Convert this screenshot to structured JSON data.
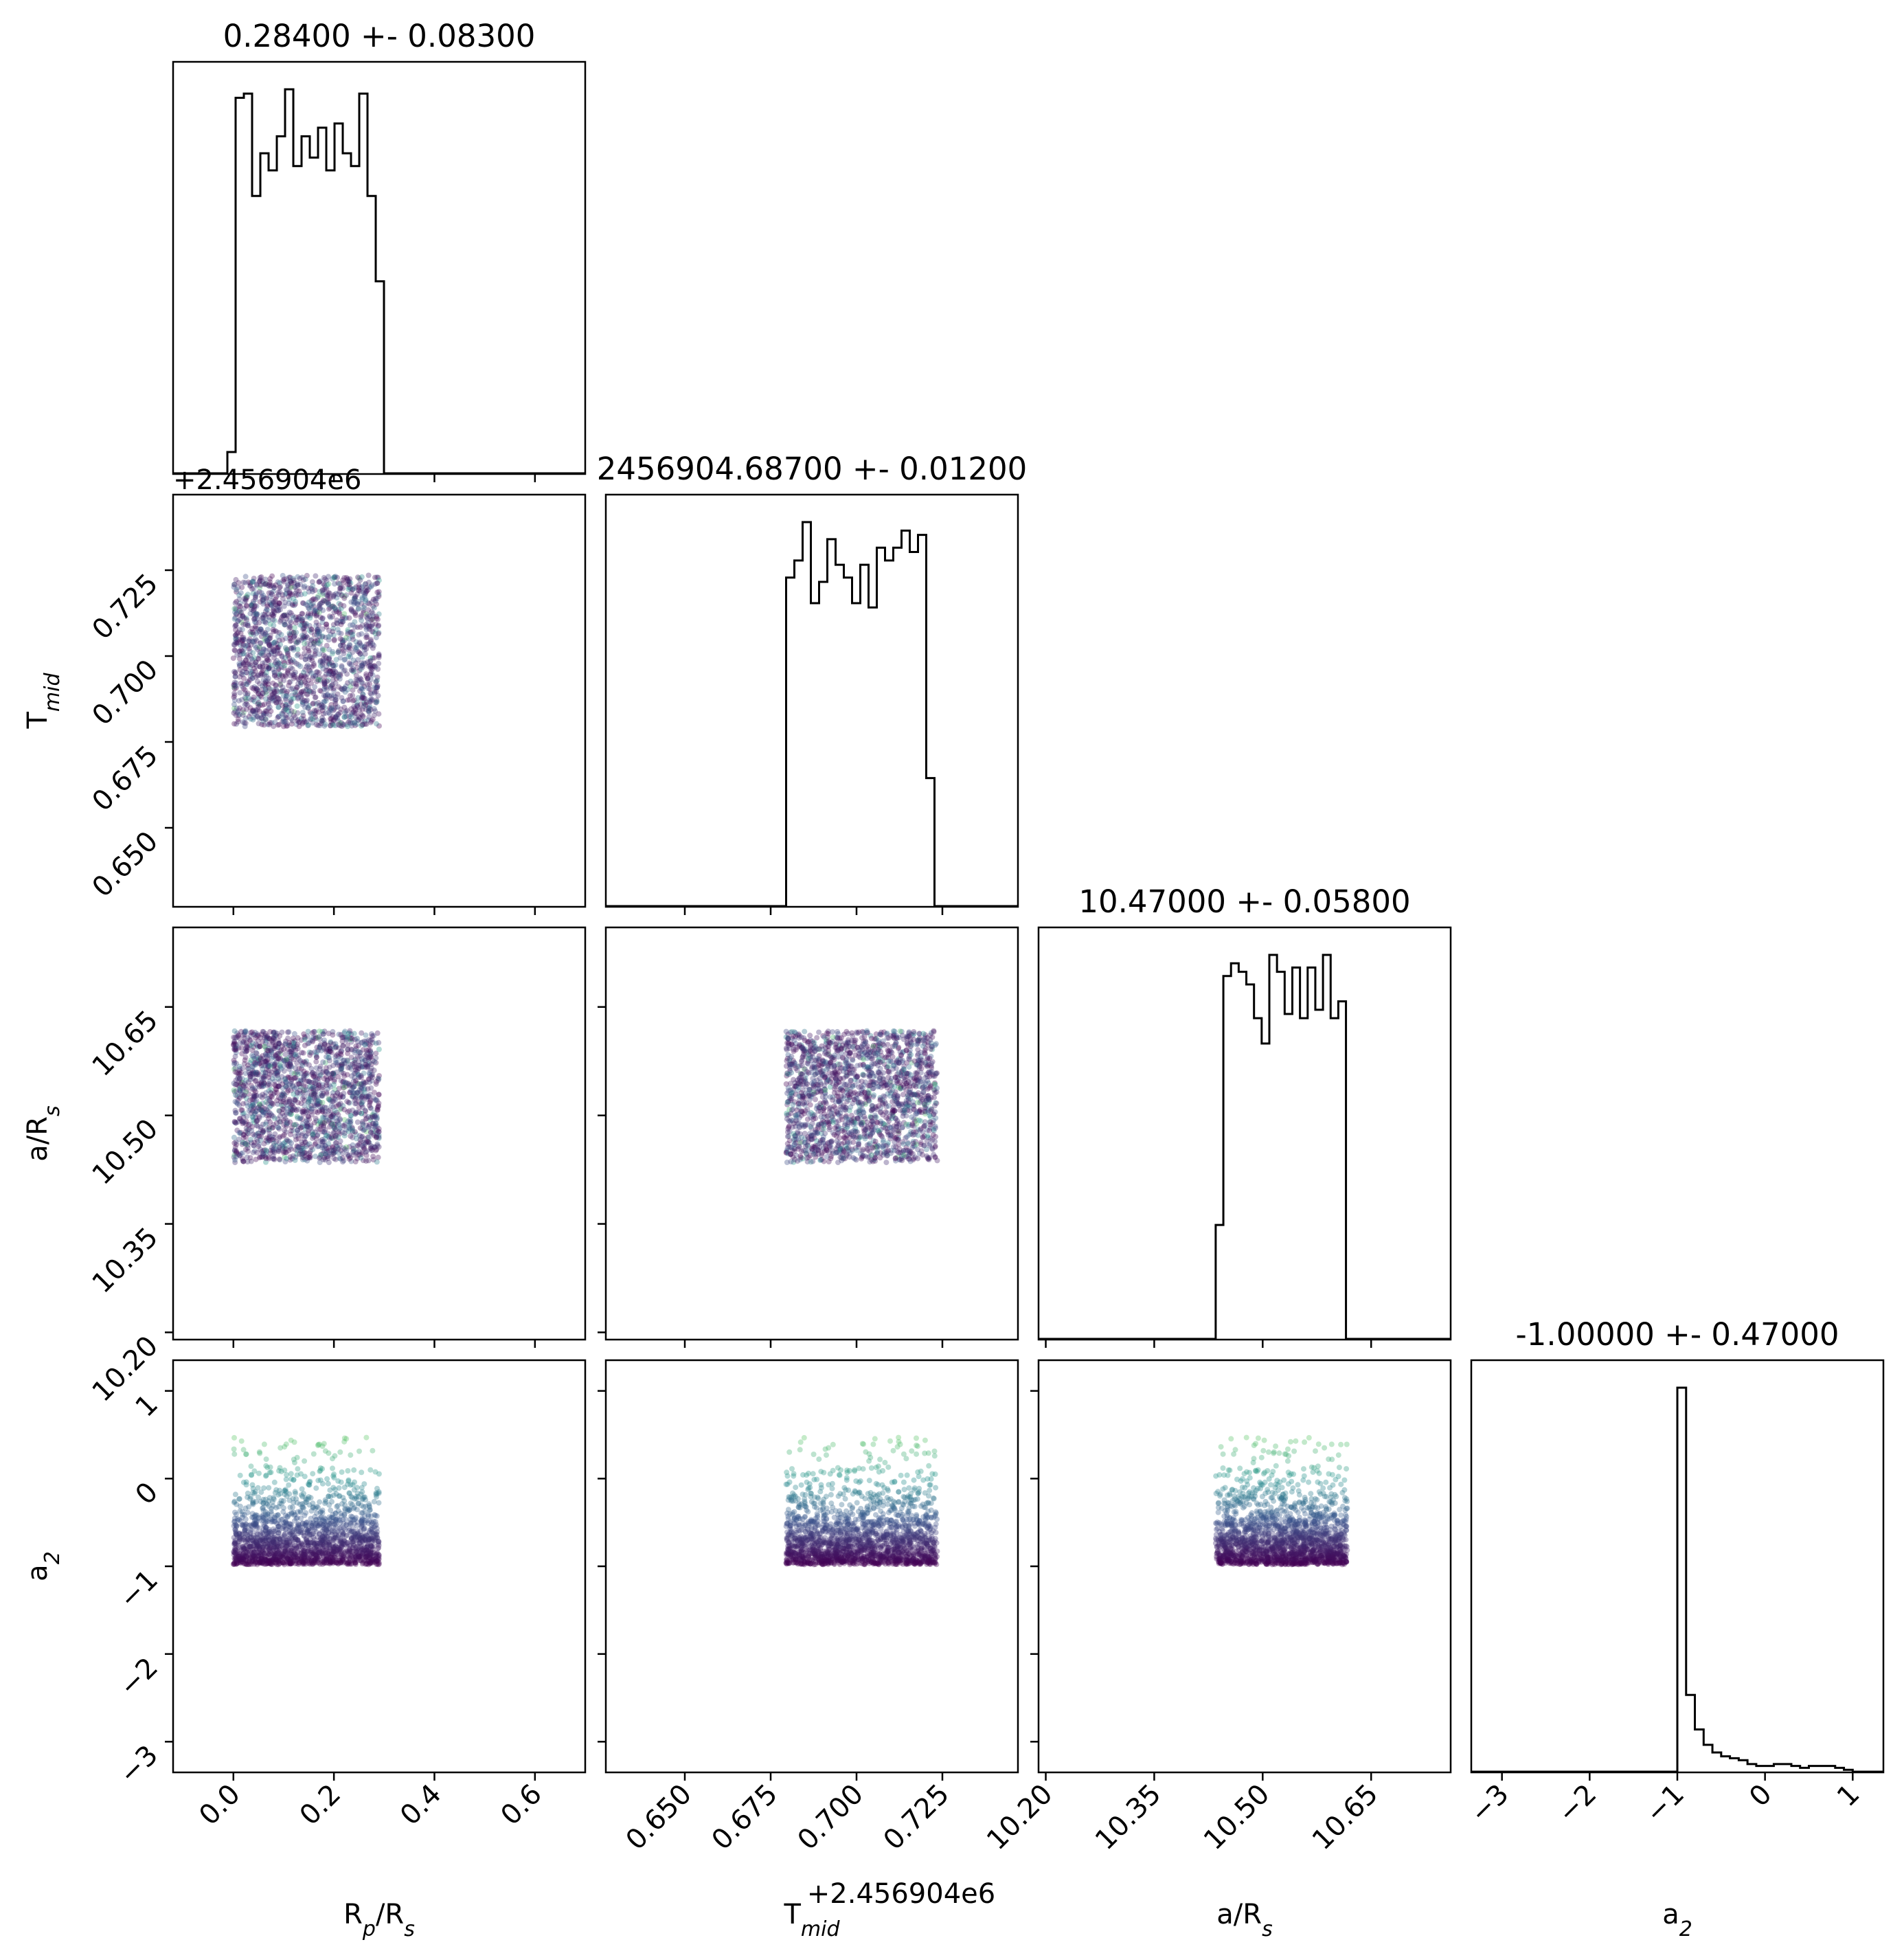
{
  "chart_data": {
    "type": "corner",
    "parameters": [
      {
        "key": "rp",
        "label_main": "R",
        "label_sub": "p",
        "label_tail": "/R",
        "label_sub2": "s",
        "title": "0.28400 +- 0.08300",
        "range": [
          -0.12,
          0.7
        ],
        "ticks": [
          0.0,
          0.2,
          0.4,
          0.6
        ],
        "tick_labels": [
          "0.0",
          "0.2",
          "0.4",
          "0.6"
        ],
        "offset_label": ""
      },
      {
        "key": "tmid",
        "label_main": "T",
        "label_sub": "mid",
        "label_tail": "",
        "label_sub2": "",
        "title": "2456904.68700 +- 0.01200",
        "range": [
          0.627,
          0.747
        ],
        "ticks": [
          0.65,
          0.675,
          0.7,
          0.725
        ],
        "tick_labels": [
          "0.650",
          "0.675",
          "0.700",
          "0.725"
        ],
        "offset_label": "+2.456904e6"
      },
      {
        "key": "ars",
        "label_main": "a/R",
        "label_sub": "s",
        "label_tail": "",
        "label_sub2": "",
        "title": "10.47000 +- 0.05800",
        "range": [
          10.19,
          10.76
        ],
        "ticks": [
          10.2,
          10.35,
          10.5,
          10.65
        ],
        "tick_labels": [
          "10.20",
          "10.35",
          "10.50",
          "10.65"
        ],
        "offset_label": ""
      },
      {
        "key": "a2",
        "label_main": "a",
        "label_sub": "2",
        "label_tail": "",
        "label_sub2": "",
        "title": "-1.00000 +- 0.47000",
        "range": [
          -3.35,
          1.35
        ],
        "ticks": [
          -3,
          -2,
          -1,
          0,
          1
        ],
        "tick_labels": [
          "−3",
          "−2",
          "−1",
          "0",
          "1"
        ],
        "offset_label": ""
      }
    ],
    "histograms": {
      "rp": {
        "edges_start": -0.012,
        "bin_width": 0.0164,
        "counts": [
          5,
          88,
          89,
          65,
          75,
          71,
          79,
          90,
          72,
          79,
          74,
          81,
          71,
          82,
          75,
          72,
          89,
          65,
          45,
          0,
          0,
          0,
          0,
          0,
          0,
          0
        ]
      },
      "tmid": {
        "edges_start": 0.6795,
        "bin_width": 0.0024,
        "counts": [
          77,
          81,
          90,
          71,
          76,
          86,
          80,
          77,
          71,
          80,
          70,
          84,
          81,
          84,
          88,
          83,
          87,
          30
        ]
      },
      "ars": {
        "edges_start": 10.435,
        "bin_width": 0.0106,
        "counts": [
          27,
          86,
          89,
          87,
          84,
          76,
          70,
          91,
          87,
          77,
          88,
          76,
          88,
          78,
          91,
          76,
          80,
          0
        ]
      },
      "a2": {
        "edges_start": -1.0,
        "bin_width": 0.1,
        "counts": [
          100,
          20,
          11,
          7,
          5,
          4,
          3.5,
          3,
          2,
          1.5,
          1.5,
          2,
          2,
          1.5,
          1,
          1.5,
          1.5,
          1.5,
          1,
          0.5
        ]
      }
    },
    "samples": {
      "count": 1800,
      "distributions": {
        "rp": {
          "kind": "uniform",
          "min": 0.0,
          "max": 0.29
        },
        "tmid": {
          "kind": "uniform",
          "min": 0.6795,
          "max": 0.7235
        },
        "ars": {
          "kind": "uniform",
          "min": 10.435,
          "max": 10.617
        },
        "a2": {
          "kind": "exponential_clipped",
          "min": -0.98,
          "max": 1.0
        }
      },
      "colormap": "viridis",
      "color_by": "a2",
      "colormap_stops": [
        "#440154",
        "#3b528b",
        "#21918c",
        "#5ec962",
        "#fde725"
      ],
      "point_opacity": 0.35
    },
    "line_color": "#000000",
    "grid": false,
    "legend": "none"
  }
}
